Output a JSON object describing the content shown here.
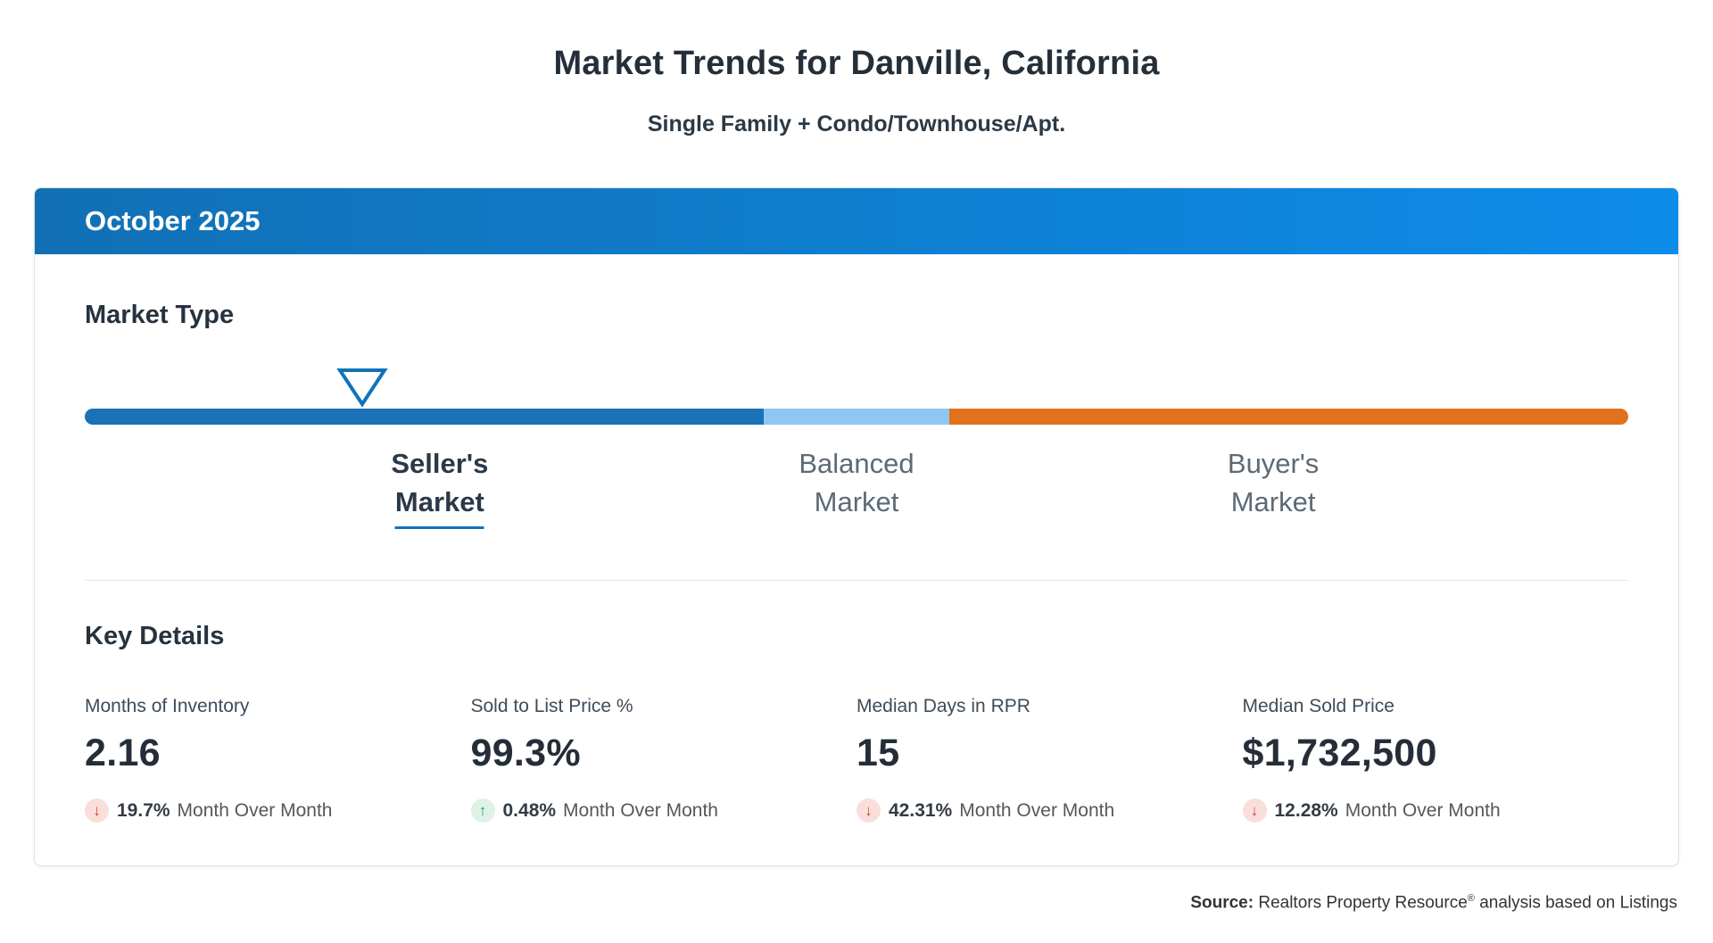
{
  "page": {
    "title": "Market Trends for Danville, California",
    "subtitle": "Single Family + Condo/Townhouse/Apt."
  },
  "card": {
    "header": {
      "month": "October 2025"
    },
    "market_type": {
      "heading": "Market Type",
      "indicator_position_pct": 18,
      "segments": [
        {
          "name": "sellers-market",
          "color": "#1b72b7",
          "width_pct": 44
        },
        {
          "name": "balanced-market",
          "color": "#8ec7f1",
          "width_pct": 12
        },
        {
          "name": "buyers-market",
          "color": "#e2711d",
          "width_pct": 44
        }
      ],
      "labels": [
        {
          "line1": "Seller's",
          "line2": "Market",
          "active": true
        },
        {
          "line1": "Balanced",
          "line2": "Market",
          "active": false
        },
        {
          "line1": "Buyer's",
          "line2": "Market",
          "active": false
        }
      ]
    },
    "key_details": {
      "heading": "Key Details",
      "metrics": [
        {
          "label": "Months of Inventory",
          "value": "2.16",
          "direction": "down",
          "change": "19.7%",
          "period": "Month Over Month"
        },
        {
          "label": "Sold to List Price %",
          "value": "99.3%",
          "direction": "up",
          "change": "0.48%",
          "period": "Month Over Month"
        },
        {
          "label": "Median Days in RPR",
          "value": "15",
          "direction": "down",
          "change": "42.31%",
          "period": "Month Over Month"
        },
        {
          "label": "Median Sold Price",
          "value": "$1,732,500",
          "direction": "down",
          "change": "12.28%",
          "period": "Month Over Month"
        }
      ]
    }
  },
  "footer": {
    "source_label": "Source:",
    "source_name": "Realtors Property Resource",
    "registered_mark": "®",
    "source_suffix": "analysis based on Listings"
  },
  "colors": {
    "header_gradient_start": "#1170b5",
    "header_gradient_end": "#0d8ce9",
    "seller_segment": "#1b72b7",
    "balanced_segment": "#8ec7f1",
    "buyer_segment": "#e2711d",
    "active_underline": "#1272b9",
    "down_change": "#cf4434",
    "up_change": "#23a05d"
  }
}
